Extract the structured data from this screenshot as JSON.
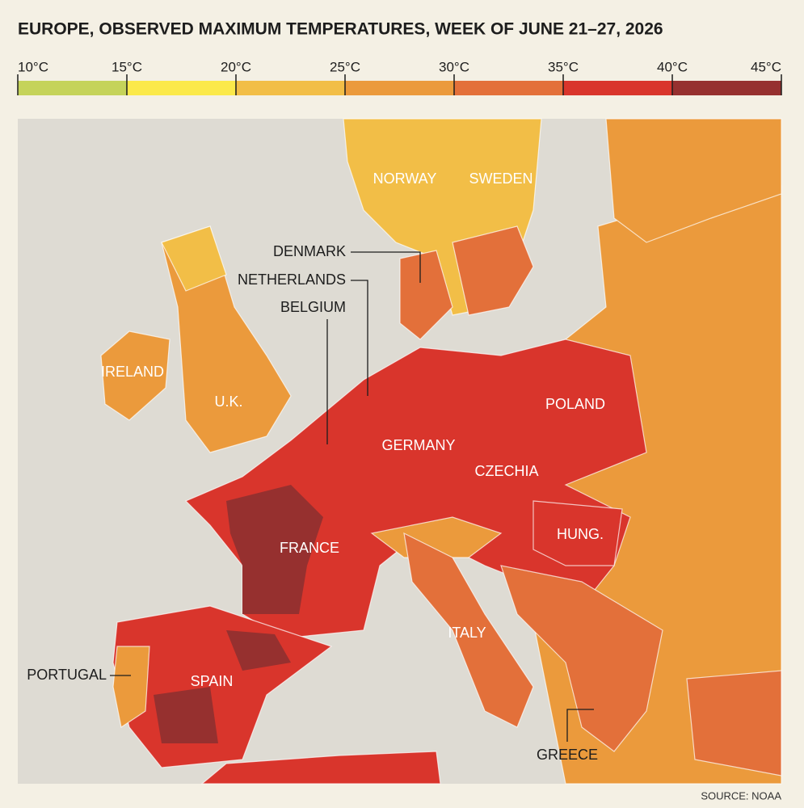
{
  "title": "EUROPE, OBSERVED MAXIMUM TEMPERATURES, WEEK OF JUNE 21–27, 2026",
  "legend": {
    "ticks": [
      {
        "value": 10,
        "label": "10°C"
      },
      {
        "value": 15,
        "label": "15°C"
      },
      {
        "value": 20,
        "label": "20°C"
      },
      {
        "value": 25,
        "label": "25°C"
      },
      {
        "value": 30,
        "label": "30°C"
      },
      {
        "value": 35,
        "label": "35°C"
      },
      {
        "value": 40,
        "label": "40°C"
      },
      {
        "value": 45,
        "label": "45°C"
      }
    ],
    "colors": [
      "#c5d35a",
      "#fbe94a",
      "#f2be47",
      "#eb9a3c",
      "#e3703a",
      "#d9352c",
      "#96302f"
    ]
  },
  "map_labels": [
    "NORWAY",
    "SWEDEN",
    "IRELAND",
    "U.K.",
    "POLAND",
    "GERMANY",
    "CZECHIA",
    "FRANCE",
    "HUNG.",
    "ITALY",
    "SPAIN"
  ],
  "callouts": [
    "DENMARK",
    "NETHERLANDS",
    "BELGIUM",
    "PORTUGAL",
    "GREECE"
  ],
  "source": "SOURCE: NOAA"
}
